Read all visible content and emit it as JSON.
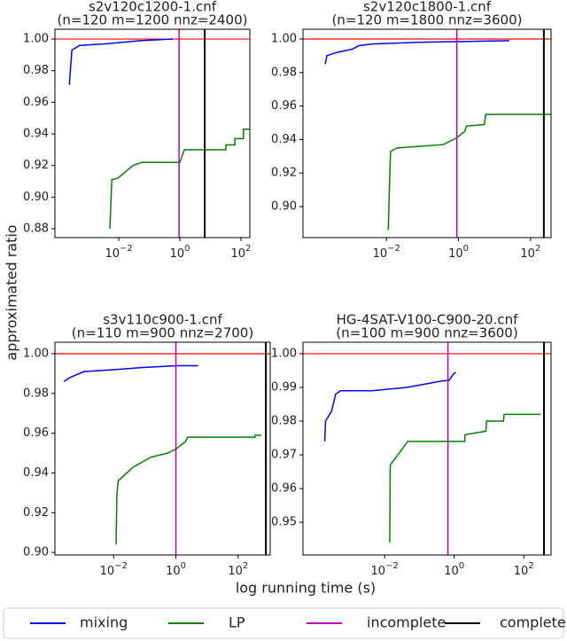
{
  "figure": {
    "y_label": "approximated ratio",
    "x_label": "log running time (s)"
  },
  "chart_data": [
    {
      "type": "line",
      "title": "s2v120c1200-1.cnf",
      "subtitle": "(n=120 m=1200 nnz=2400)",
      "xscale": "log",
      "xlim": [
        8.1e-05,
        195
      ],
      "ylim": [
        0.8744,
        1.0062
      ],
      "xticks": [
        {
          "value": 0.01,
          "label": "10",
          "exponent": "−2"
        },
        {
          "value": 1,
          "label": "10",
          "exponent": "0"
        },
        {
          "value": 100,
          "label": "10",
          "exponent": "2"
        }
      ],
      "yticks": [
        {
          "value": 0.88,
          "label": "0.88"
        },
        {
          "value": 0.9,
          "label": "0.90"
        },
        {
          "value": 0.92,
          "label": "0.92"
        },
        {
          "value": 0.94,
          "label": "0.94"
        },
        {
          "value": 0.96,
          "label": "0.96"
        },
        {
          "value": 0.98,
          "label": "0.98"
        },
        {
          "value": 1.0,
          "label": "1.00"
        }
      ],
      "hline": {
        "y": 1.0,
        "color": "#ff0000"
      },
      "series": [
        {
          "name": "mixing",
          "color": "#0000ff",
          "x": [
            0.00024,
            0.00029,
            0.00052,
            0.004,
            0.05,
            0.59
          ],
          "values": [
            0.971,
            0.993,
            0.996,
            0.997,
            0.999,
            1.0
          ]
        },
        {
          "name": "LP",
          "color": "#008000",
          "x": [
            0.0051,
            0.0059,
            0.0093,
            0.029,
            0.056,
            1.0,
            1.4,
            32,
            32,
            63,
            63,
            120,
            120,
            195
          ],
          "values": [
            0.88,
            0.911,
            0.912,
            0.92,
            0.922,
            0.922,
            0.93,
            0.93,
            0.933,
            0.933,
            0.937,
            0.937,
            0.943,
            0.943
          ]
        }
      ],
      "vlines": [
        {
          "name": "incomplete",
          "color": "#bf00bf",
          "x": 0.94
        },
        {
          "name": "complete",
          "color": "#000000",
          "x": 6.5
        }
      ]
    },
    {
      "type": "line",
      "title": "s2v120c1800-1.cnf",
      "subtitle": "(n=120 m=1800 nnz=3600)",
      "xscale": "log",
      "xlim": [
        4.8e-05,
        371
      ],
      "ylim": [
        0.8815,
        1.0058
      ],
      "xticks": [
        {
          "value": 0.01,
          "label": "10",
          "exponent": "−2"
        },
        {
          "value": 1,
          "label": "10",
          "exponent": "0"
        },
        {
          "value": 100,
          "label": "10",
          "exponent": "2"
        }
      ],
      "yticks": [
        {
          "value": 0.9,
          "label": "0.90"
        },
        {
          "value": 0.92,
          "label": "0.92"
        },
        {
          "value": 0.94,
          "label": "0.94"
        },
        {
          "value": 0.96,
          "label": "0.96"
        },
        {
          "value": 0.98,
          "label": "0.98"
        },
        {
          "value": 1.0,
          "label": "1.00"
        }
      ],
      "hline": {
        "y": 1.0,
        "color": "#ff0000"
      },
      "series": [
        {
          "name": "mixing",
          "color": "#0000ff",
          "x": [
            0.0002,
            0.00022,
            0.00042,
            0.00115,
            0.0017,
            0.004,
            0.069,
            25.7
          ],
          "values": [
            0.985,
            0.99,
            0.992,
            0.994,
            0.996,
            0.997,
            0.998,
            0.999
          ]
        },
        {
          "name": "LP",
          "color": "#008000",
          "x": [
            0.0112,
            0.0125,
            0.013,
            0.02,
            0.38,
            0.89,
            1.5,
            1.65,
            5.2,
            5.7,
            371
          ],
          "values": [
            0.886,
            0.923,
            0.933,
            0.935,
            0.937,
            0.941,
            0.945,
            0.948,
            0.949,
            0.955,
            0.955
          ]
        }
      ],
      "vlines": [
        {
          "name": "incomplete",
          "color": "#bf00bf",
          "x": 0.9
        },
        {
          "name": "complete",
          "color": "#000000",
          "x": 234
        }
      ]
    },
    {
      "type": "line",
      "title": "s3v110c900-1.cnf",
      "subtitle": "(n=110 m=900 nnz=2700)",
      "xscale": "log",
      "xlim": [
        0.00013,
        1070
      ],
      "ylim": [
        0.8987,
        1.0058
      ],
      "xticks": [
        {
          "value": 0.01,
          "label": "10",
          "exponent": "−2"
        },
        {
          "value": 1,
          "label": "10",
          "exponent": "0"
        },
        {
          "value": 100,
          "label": "10",
          "exponent": "2"
        }
      ],
      "yticks": [
        {
          "value": 0.9,
          "label": "0.90"
        },
        {
          "value": 0.92,
          "label": "0.92"
        },
        {
          "value": 0.94,
          "label": "0.94"
        },
        {
          "value": 0.96,
          "label": "0.96"
        },
        {
          "value": 0.98,
          "label": "0.98"
        },
        {
          "value": 1.0,
          "label": "1.00"
        }
      ],
      "hline": {
        "y": 1.0,
        "color": "#ff0000"
      },
      "series": [
        {
          "name": "mixing",
          "color": "#0000ff",
          "x": [
            0.00025,
            0.00039,
            0.0011,
            0.011,
            0.077,
            1.05,
            5.2
          ],
          "values": [
            0.986,
            0.988,
            0.991,
            0.992,
            0.993,
            0.994,
            0.994
          ]
        },
        {
          "name": "LP",
          "color": "#008000",
          "x": [
            0.012,
            0.0127,
            0.014,
            0.043,
            0.16,
            0.55,
            1.0,
            2.1,
            2.35,
            347,
            347,
            550
          ],
          "values": [
            0.904,
            0.929,
            0.936,
            0.943,
            0.948,
            0.95,
            0.952,
            0.956,
            0.958,
            0.958,
            0.959,
            0.959
          ]
        }
      ],
      "vlines": [
        {
          "name": "incomplete",
          "color": "#bf00bf",
          "x": 1.0
        },
        {
          "name": "complete",
          "color": "#000000",
          "x": 776
        }
      ]
    },
    {
      "type": "line",
      "title": "HG-4SAT-V100-C900-20.cnf",
      "subtitle": "(n=100 m=900 nnz=3600)",
      "xscale": "log",
      "xlim": [
        4.5e-05,
        607
      ],
      "ylim": [
        0.9403,
        1.0034
      ],
      "xticks": [
        {
          "value": 0.01,
          "label": "10",
          "exponent": "−2"
        },
        {
          "value": 1,
          "label": "10",
          "exponent": "0"
        },
        {
          "value": 100,
          "label": "10",
          "exponent": "2"
        }
      ],
      "yticks": [
        {
          "value": 0.95,
          "label": "0.95"
        },
        {
          "value": 0.96,
          "label": "0.96"
        },
        {
          "value": 0.97,
          "label": "0.97"
        },
        {
          "value": 0.98,
          "label": "0.98"
        },
        {
          "value": 0.99,
          "label": "0.99"
        },
        {
          "value": 1.0,
          "label": "1.00"
        }
      ],
      "hline": {
        "y": 1.0,
        "color": "#ff0000"
      },
      "series": [
        {
          "name": "mixing",
          "color": "#0000ff",
          "x": [
            0.00019,
            0.0002,
            0.0003,
            0.00039,
            0.00054,
            0.0042,
            0.043,
            0.5,
            0.7,
            0.95,
            1.1
          ],
          "values": [
            0.974,
            0.98,
            0.983,
            0.988,
            0.989,
            0.989,
            0.99,
            0.992,
            0.992,
            0.994,
            0.9945
          ]
        },
        {
          "name": "LP",
          "color": "#008000",
          "x": [
            0.014,
            0.0145,
            0.024,
            0.046,
            2.0,
            2.05,
            8.1,
            8.5,
            26,
            27,
            302
          ],
          "values": [
            0.944,
            0.967,
            0.97,
            0.974,
            0.974,
            0.976,
            0.977,
            0.98,
            0.98,
            0.982,
            0.982
          ]
        }
      ],
      "vlines": [
        {
          "name": "incomplete",
          "color": "#bf00bf",
          "x": 0.66
        },
        {
          "name": "complete",
          "color": "#000000",
          "x": 380
        }
      ]
    }
  ]
}
